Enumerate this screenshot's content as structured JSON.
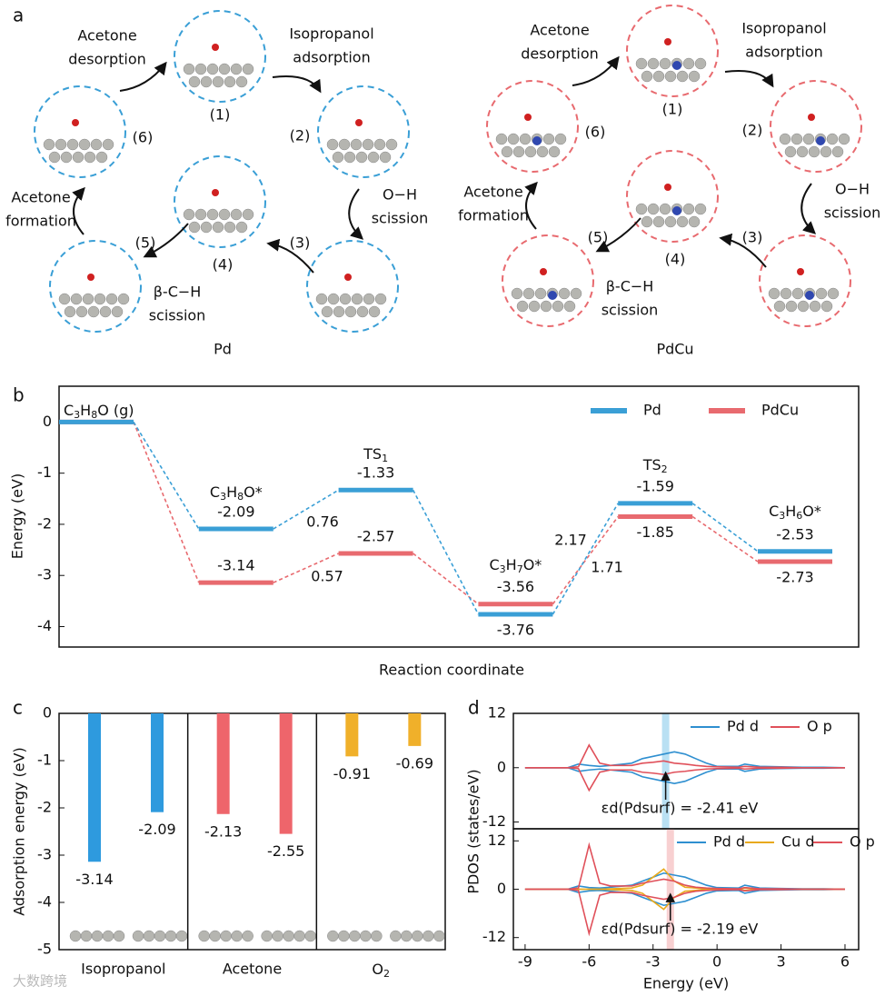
{
  "panel_a": {
    "label": "a",
    "cycles": [
      {
        "name": "Pd",
        "color": "#3a9fd6",
        "steps": [
          "(1)",
          "(2)",
          "(3)",
          "(4)",
          "(5)",
          "(6)"
        ]
      },
      {
        "name": "PdCu",
        "color": "#e86a6f",
        "steps": [
          "(1)",
          "(2)",
          "(3)",
          "(4)",
          "(5)",
          "(6)"
        ]
      }
    ],
    "transitions": [
      [
        "Isopropanol",
        "adsorption"
      ],
      [
        "O−H",
        "scission"
      ],
      [
        "β-C−H",
        "scission"
      ],
      [
        "Acetone",
        "formation"
      ],
      [
        "Acetone",
        "desorption"
      ]
    ]
  },
  "chart_data": [
    {
      "type": "energy_diagram",
      "label": "b",
      "xlabel": "Reaction coordinate",
      "ylabel": "Energy (eV)",
      "categories": [
        "C3H8O (g)",
        "C3H8O*",
        "TS1",
        "C3H7O*",
        "TS2",
        "C3H6O*"
      ],
      "series": [
        {
          "name": "Pd",
          "color": "#3a9fd6",
          "values": [
            0,
            -2.09,
            -1.33,
            -3.76,
            -1.59,
            -2.53
          ]
        },
        {
          "name": "PdCu",
          "color": "#e86a6f",
          "values": [
            0,
            -3.14,
            -2.57,
            -3.56,
            -1.85,
            -2.73
          ]
        }
      ],
      "barriers": [
        {
          "series": "Pd",
          "value": 0.76
        },
        {
          "series": "PdCu",
          "value": 0.57
        },
        {
          "series": "Pd",
          "value": 2.17
        },
        {
          "series": "PdCu",
          "value": 1.71
        }
      ],
      "ylim": [
        -4.4,
        0.7
      ],
      "yticks": [
        -4,
        -3,
        -2,
        -1,
        0
      ],
      "legend": "upper right"
    },
    {
      "type": "grouped_bar",
      "label": "c",
      "ylabel": "Adsorption energy (eV)",
      "categories": [
        "Isopropanol",
        "Acetone",
        "O2"
      ],
      "colors": [
        "#2e9ade",
        "#ee656b",
        "#f0b02a"
      ],
      "values": [
        [
          -3.14,
          -2.09
        ],
        [
          -2.13,
          -2.55
        ],
        [
          -0.91,
          -0.69
        ]
      ],
      "ylim": [
        -5,
        0
      ],
      "yticks": [
        -5,
        -4,
        -3,
        -2,
        -1,
        0
      ]
    },
    {
      "type": "pdos",
      "label": "d",
      "ylabel": "PDOS (states/eV)",
      "x": [
        -9,
        -8,
        -7,
        -6.5,
        -6,
        -5.5,
        -5,
        -4,
        -3.5,
        -3,
        -2.5,
        -2,
        -1.5,
        -1,
        -0.5,
        0,
        1,
        1.3,
        2,
        3,
        4,
        5,
        6
      ],
      "xlim": [
        -9.55,
        6.64
      ],
      "ylim": [
        -13.5,
        12
      ],
      "yticks": [
        -12,
        0,
        12
      ],
      "series": [
        {
          "name": "Pd d",
          "color": "#2e8fd0",
          "up": [
            0,
            0,
            0,
            0.8,
            0.5,
            0.3,
            0.5,
            1,
            2,
            2.5,
            3,
            3.5,
            3,
            2,
            1,
            0.3,
            0.3,
            0.8,
            0.3,
            0.2,
            0.1,
            0.1,
            0
          ],
          "down": [
            0,
            0,
            0,
            -0.8,
            -0.5,
            -0.3,
            -0.5,
            -1,
            -2,
            -2.5,
            -3,
            -3.5,
            -3,
            -2,
            -1,
            -0.3,
            -0.3,
            -0.8,
            -0.3,
            -0.2,
            -0.1,
            -0.1,
            0
          ]
        },
        {
          "name": "O p",
          "color": "#e0505a",
          "up": [
            0,
            0,
            0,
            0.2,
            5,
            1,
            0.5,
            0.5,
            1,
            1.2,
            1.5,
            1,
            0.8,
            0.5,
            0.3,
            0.2,
            0.1,
            0.3,
            0.1,
            0.1,
            0,
            0,
            0
          ],
          "down": [
            0,
            0,
            0,
            -0.2,
            -5,
            -1,
            -0.5,
            -0.5,
            -1,
            -1.2,
            -1.5,
            -1,
            -0.8,
            -0.5,
            -0.3,
            -0.2,
            -0.1,
            -0.3,
            -0.1,
            -0.1,
            0,
            0,
            0
          ]
        }
      ],
      "d_band_center": {
        "value": -2.41,
        "label": "εd(Pdsurf) = -2.41 eV",
        "color": "#a8d8f0"
      }
    },
    {
      "type": "pdos",
      "xlabel": "Energy (eV)",
      "x": [
        -9,
        -8,
        -7,
        -6.5,
        -6,
        -5.5,
        -5,
        -4,
        -3.5,
        -3,
        -2.5,
        -2,
        -1.5,
        -1,
        -0.5,
        0,
        1,
        1.3,
        2,
        3,
        4,
        5,
        6
      ],
      "xlim": [
        -9.55,
        6.64
      ],
      "xticks": [
        -9,
        -6,
        -3,
        0,
        3,
        6
      ],
      "ylim": [
        -15,
        15
      ],
      "yticks": [
        -12,
        0,
        12
      ],
      "series": [
        {
          "name": "Pd d",
          "color": "#2e8fd0",
          "up": [
            0,
            0,
            0,
            0.8,
            0.4,
            0.3,
            0.5,
            1,
            2,
            3,
            4,
            3.5,
            3,
            2,
            1,
            0.4,
            0.3,
            1,
            0.3,
            0.2,
            0.1,
            0.1,
            0
          ],
          "down": [
            0,
            0,
            0,
            -0.8,
            -0.4,
            -0.3,
            -0.5,
            -1,
            -2,
            -3,
            -4,
            -3.5,
            -3,
            -2,
            -1,
            -0.4,
            -0.3,
            -1,
            -0.3,
            -0.2,
            -0.1,
            -0.1,
            0
          ]
        },
        {
          "name": "Cu d",
          "color": "#e8a91c",
          "up": [
            0,
            0,
            0,
            0,
            0,
            0,
            0.1,
            0.3,
            1,
            3,
            5,
            2,
            0.5,
            0.3,
            0.1,
            0,
            0,
            0.3,
            0,
            0,
            0,
            0,
            0
          ],
          "down": [
            0,
            0,
            0,
            0,
            0,
            0,
            -0.1,
            -0.3,
            -1,
            -3,
            -5,
            -2,
            -0.5,
            -0.3,
            -0.1,
            0,
            0,
            -0.3,
            0,
            0,
            0,
            0,
            0
          ]
        },
        {
          "name": "O p",
          "color": "#e0505a",
          "up": [
            0,
            0,
            0,
            0.3,
            11,
            1.5,
            0.8,
            0.8,
            1.5,
            2,
            2.5,
            2,
            1,
            0.5,
            0.3,
            0.2,
            0.1,
            0.4,
            0.1,
            0.1,
            0,
            0,
            0
          ],
          "down": [
            0,
            0,
            0,
            -0.3,
            -11,
            -1.5,
            -0.8,
            -0.8,
            -1.5,
            -2,
            -2.5,
            -2,
            -1,
            -0.5,
            -0.3,
            -0.2,
            -0.1,
            -0.4,
            -0.1,
            -0.1,
            0,
            0,
            0
          ]
        }
      ],
      "d_band_center": {
        "value": -2.19,
        "label": "εd(Pdsurf) = -2.19 eV",
        "color": "#f6c4c6"
      }
    }
  ],
  "watermark": "大数跨境"
}
